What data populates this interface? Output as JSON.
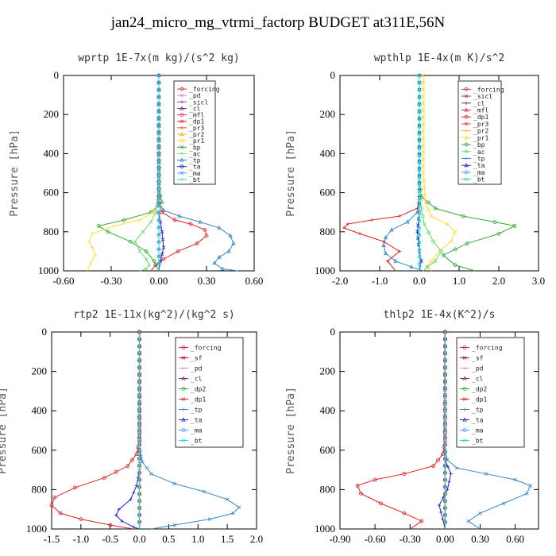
{
  "title": "jan24_micro_mg_vtrmi_factorp  BUDGET at311E,56N",
  "colors": {
    "_forcing": "#cc3333",
    "_pd": "#dd88dd",
    "_sicl": "#884499",
    "_cl": "#773377",
    "_mfl": "#cc3366",
    "_dp1": "#dd2222",
    "_pr3": "#ee4444",
    "_pr2": "#ffaa22",
    "_pr1": "#ffdd33",
    "_bp": "#33aa33",
    "_ac": "#66dd66",
    "_tp": "#3388cc",
    "_ta": "#2222cc",
    "_ma": "#5599ff",
    "_bt": "#22dddd",
    "_sf": "#cc0000",
    "_dp2": "#33aa33"
  },
  "chart_data": [
    {
      "type": "line",
      "title": "wprtp   1E-7x(m kg)/(s^2 kg)",
      "ylabel": "Pressure [hPa]",
      "xlim": [
        -0.6,
        0.6
      ],
      "ylim": [
        1000,
        0
      ],
      "xticks": [
        "-0.60",
        "-0.30",
        "0.00",
        "0.30",
        "0.60"
      ],
      "xtick_values": [
        -0.6,
        -0.3,
        0.0,
        0.3,
        0.6
      ],
      "yticks": [
        0,
        200,
        400,
        600,
        800,
        1000
      ],
      "legend": [
        "_forcing",
        "_pd",
        "_sicl",
        "_cl",
        "_mfl",
        "_dp1",
        "_pr3",
        "_pr2",
        "_pr1",
        "_bp",
        "_ac",
        "_tp",
        "_ta",
        "_ma",
        "_bt"
      ],
      "series": [
        {
          "name": "_bp",
          "x": [
            0,
            0,
            0.02,
            -0.05,
            -0.22,
            -0.38,
            -0.32,
            -0.18,
            -0.08,
            -0.03,
            0
          ],
          "y": [
            0,
            580,
            650,
            700,
            740,
            770,
            800,
            850,
            900,
            950,
            1000
          ]
        },
        {
          "name": "_ac",
          "x": [
            0,
            0,
            -0.02,
            -0.05,
            -0.1,
            -0.15,
            -0.12,
            -0.08,
            -0.06,
            -0.08,
            -0.12
          ],
          "y": [
            0,
            600,
            700,
            750,
            800,
            850,
            900,
            940,
            970,
            990,
            1000
          ]
        },
        {
          "name": "_pr1",
          "x": [
            0,
            0,
            -0.03,
            -0.12,
            -0.28,
            -0.42,
            -0.44,
            -0.42,
            -0.4,
            -0.43,
            -0.45
          ],
          "y": [
            0,
            660,
            700,
            740,
            770,
            810,
            850,
            880,
            920,
            960,
            1000
          ]
        },
        {
          "name": "_tp",
          "x": [
            0,
            0,
            0.03,
            0.13,
            0.26,
            0.38,
            0.45,
            0.47,
            0.44,
            0.38,
            0.35,
            0.4,
            0.5
          ],
          "y": [
            0,
            650,
            690,
            720,
            750,
            780,
            820,
            860,
            900,
            930,
            960,
            990,
            1000
          ]
        },
        {
          "name": "_dp1",
          "x": [
            0,
            0,
            0.02,
            0.1,
            0.2,
            0.29,
            0.3,
            0.24,
            0.12,
            0.03,
            -0.02,
            -0.05
          ],
          "y": [
            0,
            650,
            700,
            740,
            760,
            790,
            820,
            860,
            900,
            940,
            970,
            1000
          ]
        },
        {
          "name": "_ta",
          "x": [
            0,
            0,
            0.01,
            0.02,
            0.03,
            0.01,
            0
          ],
          "y": [
            0,
            700,
            750,
            800,
            880,
            950,
            1000
          ]
        },
        {
          "name": "_pd",
          "x": [
            0,
            0
          ],
          "y": [
            0,
            1000
          ]
        },
        {
          "name": "_sicl",
          "x": [
            0,
            0
          ],
          "y": [
            0,
            1000
          ]
        },
        {
          "name": "_bt",
          "x": [
            0,
            0
          ],
          "y": [
            0,
            1000
          ]
        }
      ]
    },
    {
      "type": "line",
      "title": "wpthlp   1E-4x(m K)/s^2",
      "ylabel": "Pressure [hPa]",
      "xlim": [
        -2.0,
        3.0
      ],
      "ylim": [
        1000,
        0
      ],
      "xticks": [
        "-2.0",
        "-1.0",
        "0.0",
        "1.0",
        "2.0",
        "3.0"
      ],
      "xtick_values": [
        -2.0,
        -1.0,
        0.0,
        1.0,
        2.0,
        3.0
      ],
      "yticks": [
        0,
        200,
        400,
        600,
        800,
        1000
      ],
      "legend": [
        "_forcing",
        "_sicl",
        "_cl",
        "_mfl",
        "_dp1",
        "_pr3",
        "_pr2",
        "_pr1",
        "_bp",
        "_ac",
        "_tp",
        "_ta",
        "_ma",
        "_bt"
      ],
      "series": [
        {
          "name": "_bp",
          "x": [
            0,
            0,
            0.05,
            0.4,
            1.1,
            1.9,
            2.4,
            2.0,
            1.2,
            0.6,
            0.9,
            1.4
          ],
          "y": [
            0,
            550,
            620,
            680,
            720,
            750,
            770,
            810,
            860,
            920,
            970,
            1000
          ]
        },
        {
          "name": "_pr1",
          "x": [
            0.1,
            0.1,
            0.15,
            0.3,
            0.7,
            0.9,
            0.8,
            0.5,
            0.3,
            0.2,
            0.3
          ],
          "y": [
            0,
            500,
            650,
            720,
            760,
            800,
            850,
            900,
            950,
            980,
            1000
          ]
        },
        {
          "name": "_dp1",
          "x": [
            0,
            0,
            -0.05,
            -0.5,
            -1.2,
            -1.8,
            -1.9,
            -1.5,
            -0.9,
            -0.5,
            -0.8,
            -0.6
          ],
          "y": [
            0,
            620,
            680,
            720,
            740,
            760,
            780,
            810,
            850,
            900,
            950,
            1000
          ]
        },
        {
          "name": "_tp",
          "x": [
            0,
            0,
            -0.05,
            -0.3,
            -0.7,
            -0.85,
            -0.9,
            -0.85,
            -0.6,
            -0.2,
            0.1
          ],
          "y": [
            0,
            650,
            700,
            750,
            790,
            830,
            870,
            910,
            950,
            980,
            1000
          ]
        },
        {
          "name": "_ac",
          "x": [
            0,
            0,
            0.05,
            0.12,
            0.35,
            0.55,
            0.4,
            0.2,
            0.1
          ],
          "y": [
            0,
            600,
            680,
            760,
            850,
            900,
            950,
            980,
            1000
          ]
        },
        {
          "name": "_ta",
          "x": [
            0,
            0,
            -0.05,
            0,
            0.05,
            0
          ],
          "y": [
            0,
            700,
            800,
            900,
            950,
            1000
          ]
        },
        {
          "name": "_sicl",
          "x": [
            0,
            0
          ],
          "y": [
            0,
            1000
          ]
        },
        {
          "name": "_bt",
          "x": [
            0,
            0
          ],
          "y": [
            0,
            1000
          ]
        }
      ]
    },
    {
      "type": "line",
      "title": "rtp2   1E-11x(kg^2)/(kg^2 s)",
      "ylabel": "Pressure [hPa]",
      "xlim": [
        -1.5,
        2.0
      ],
      "ylim": [
        1000,
        0
      ],
      "xticks": [
        "-1.5",
        "-1.0",
        "-0.5",
        "0.0",
        "0.5",
        "1.0",
        "1.5",
        "2.0"
      ],
      "xtick_values": [
        -1.5,
        -1.0,
        -0.5,
        0.0,
        0.5,
        1.0,
        1.5,
        2.0
      ],
      "yticks": [
        0,
        200,
        400,
        600,
        800,
        1000
      ],
      "legend": [
        "_forcing",
        "_sf",
        "_pd",
        "_cl",
        "_dp2",
        "_dp1",
        "_tp",
        "_ta",
        "_ma",
        "_bt"
      ],
      "series": [
        {
          "name": "_dp1",
          "x": [
            0,
            0,
            -0.05,
            -0.2,
            -0.6,
            -1.1,
            -1.45,
            -1.5,
            -1.35,
            -1.0,
            -0.5,
            -0.1
          ],
          "y": [
            0,
            550,
            620,
            680,
            740,
            790,
            840,
            880,
            920,
            950,
            980,
            1000
          ]
        },
        {
          "name": "_tp",
          "x": [
            0,
            0,
            0.05,
            0.2,
            0.6,
            1.1,
            1.5,
            1.7,
            1.6,
            1.2,
            0.6,
            0.2
          ],
          "y": [
            0,
            600,
            660,
            720,
            770,
            810,
            850,
            890,
            920,
            950,
            980,
            1000
          ]
        },
        {
          "name": "_ta",
          "x": [
            0,
            0,
            -0.05,
            -0.15,
            -0.35,
            -0.4,
            -0.3,
            -0.1,
            0
          ],
          "y": [
            0,
            700,
            780,
            850,
            900,
            930,
            960,
            990,
            1000
          ]
        },
        {
          "name": "_forcing",
          "x": [
            0,
            0
          ],
          "y": [
            0,
            1000
          ]
        },
        {
          "name": "_sf",
          "x": [
            0,
            0
          ],
          "y": [
            0,
            1000
          ]
        },
        {
          "name": "_bt",
          "x": [
            0,
            0
          ],
          "y": [
            0,
            1000
          ]
        }
      ]
    },
    {
      "type": "line",
      "title": "thlp2   1E-4x(K^2)/s",
      "ylabel": "Pressure [hPa]",
      "xlim": [
        -0.9,
        0.8
      ],
      "ylim": [
        1000,
        0
      ],
      "xticks": [
        "-0.90",
        "-0.60",
        "-0.30",
        "0.00",
        "0.30",
        "0.60"
      ],
      "xtick_values": [
        -0.9,
        -0.6,
        -0.3,
        0.0,
        0.3,
        0.6
      ],
      "yticks": [
        0,
        200,
        400,
        600,
        800,
        1000
      ],
      "legend": [
        "_forcing",
        "_sf",
        "_pd",
        "_cl",
        "_dp2",
        "_dp1",
        "_tp",
        "_ta",
        "_ma",
        "_bt"
      ],
      "series": [
        {
          "name": "_dp1",
          "x": [
            0,
            0,
            -0.02,
            -0.1,
            -0.35,
            -0.6,
            -0.75,
            -0.72,
            -0.55,
            -0.35,
            -0.2,
            -0.3
          ],
          "y": [
            0,
            550,
            620,
            680,
            720,
            750,
            780,
            820,
            870,
            920,
            960,
            1000
          ]
        },
        {
          "name": "_tp",
          "x": [
            0,
            0,
            0.02,
            0.1,
            0.35,
            0.6,
            0.73,
            0.7,
            0.5,
            0.3,
            0.2,
            0.3
          ],
          "y": [
            0,
            600,
            650,
            690,
            720,
            750,
            780,
            820,
            870,
            920,
            960,
            1000
          ]
        },
        {
          "name": "_ta",
          "x": [
            0,
            0,
            0.05,
            0.02,
            -0.05,
            -0.02,
            0
          ],
          "y": [
            0,
            650,
            720,
            800,
            880,
            950,
            1000
          ]
        },
        {
          "name": "_forcing",
          "x": [
            0,
            0
          ],
          "y": [
            0,
            1000
          ]
        },
        {
          "name": "_sf",
          "x": [
            0,
            0
          ],
          "y": [
            0,
            1000
          ]
        },
        {
          "name": "_bt",
          "x": [
            0,
            0
          ],
          "y": [
            0,
            1000
          ]
        }
      ]
    }
  ]
}
